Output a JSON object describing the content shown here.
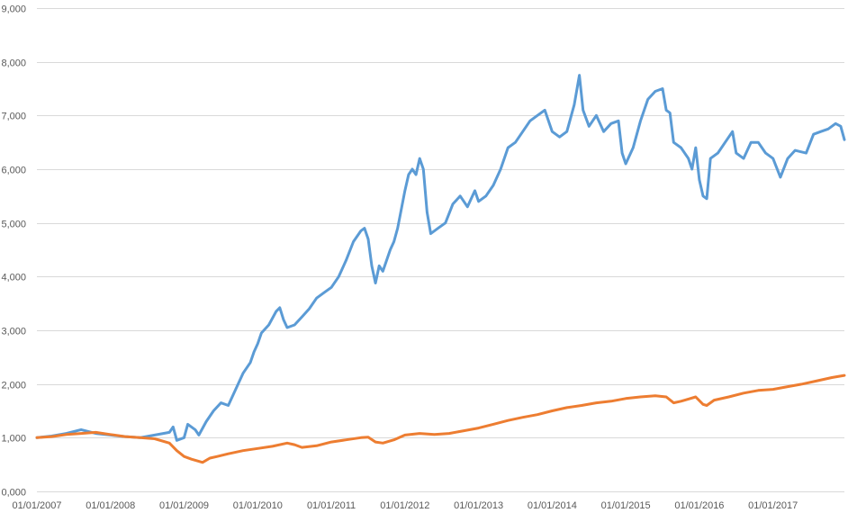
{
  "chart_data": {
    "type": "line",
    "title": "",
    "xlabel": "",
    "ylabel": "",
    "ylim": [
      0,
      9000
    ],
    "y_ticks": [
      "0,000",
      "1,000",
      "2,000",
      "3,000",
      "4,000",
      "5,000",
      "6,000",
      "7,000",
      "8,000",
      "9,000"
    ],
    "y_tick_values": [
      0,
      1000,
      2000,
      3000,
      4000,
      5000,
      6000,
      7000,
      8000,
      9000
    ],
    "x_ticks": [
      "01/01/2007",
      "01/01/2008",
      "01/01/2009",
      "01/01/2010",
      "01/01/2011",
      "01/01/2012",
      "01/01/2013",
      "01/01/2014",
      "01/01/2015",
      "01/01/2016",
      "01/01/2017"
    ],
    "x_tick_values": [
      2007,
      2008,
      2009,
      2010,
      2011,
      2012,
      2013,
      2014,
      2015,
      2016,
      2017
    ],
    "xlim": [
      2007,
      2017.97
    ],
    "grid": true,
    "legend": "none",
    "series": [
      {
        "color": "#5B9BD5",
        "points": [
          [
            2007.0,
            1000
          ],
          [
            2007.2,
            1030
          ],
          [
            2007.4,
            1080
          ],
          [
            2007.6,
            1150
          ],
          [
            2007.8,
            1080
          ],
          [
            2008.0,
            1050
          ],
          [
            2008.2,
            1020
          ],
          [
            2008.4,
            1000
          ],
          [
            2008.6,
            1050
          ],
          [
            2008.8,
            1100
          ],
          [
            2008.85,
            1200
          ],
          [
            2008.9,
            950
          ],
          [
            2009.0,
            1000
          ],
          [
            2009.05,
            1250
          ],
          [
            2009.15,
            1150
          ],
          [
            2009.2,
            1050
          ],
          [
            2009.3,
            1300
          ],
          [
            2009.4,
            1500
          ],
          [
            2009.5,
            1650
          ],
          [
            2009.6,
            1600
          ],
          [
            2009.7,
            1900
          ],
          [
            2009.8,
            2200
          ],
          [
            2009.9,
            2400
          ],
          [
            2009.95,
            2600
          ],
          [
            2010.0,
            2750
          ],
          [
            2010.05,
            2950
          ],
          [
            2010.15,
            3100
          ],
          [
            2010.25,
            3350
          ],
          [
            2010.3,
            3420
          ],
          [
            2010.35,
            3200
          ],
          [
            2010.4,
            3050
          ],
          [
            2010.5,
            3100
          ],
          [
            2010.6,
            3250
          ],
          [
            2010.7,
            3400
          ],
          [
            2010.8,
            3600
          ],
          [
            2010.9,
            3700
          ],
          [
            2011.0,
            3800
          ],
          [
            2011.1,
            4000
          ],
          [
            2011.2,
            4300
          ],
          [
            2011.3,
            4650
          ],
          [
            2011.4,
            4850
          ],
          [
            2011.45,
            4900
          ],
          [
            2011.5,
            4700
          ],
          [
            2011.55,
            4200
          ],
          [
            2011.6,
            3880
          ],
          [
            2011.65,
            4200
          ],
          [
            2011.7,
            4100
          ],
          [
            2011.8,
            4500
          ],
          [
            2011.85,
            4650
          ],
          [
            2011.9,
            4900
          ],
          [
            2012.0,
            5600
          ],
          [
            2012.05,
            5900
          ],
          [
            2012.1,
            6000
          ],
          [
            2012.15,
            5900
          ],
          [
            2012.2,
            6200
          ],
          [
            2012.25,
            6000
          ],
          [
            2012.3,
            5200
          ],
          [
            2012.35,
            4800
          ],
          [
            2012.45,
            4900
          ],
          [
            2012.55,
            5000
          ],
          [
            2012.65,
            5350
          ],
          [
            2012.75,
            5500
          ],
          [
            2012.85,
            5300
          ],
          [
            2012.95,
            5600
          ],
          [
            2013.0,
            5400
          ],
          [
            2013.1,
            5500
          ],
          [
            2013.2,
            5700
          ],
          [
            2013.3,
            6000
          ],
          [
            2013.4,
            6400
          ],
          [
            2013.5,
            6500
          ],
          [
            2013.6,
            6700
          ],
          [
            2013.7,
            6900
          ],
          [
            2013.8,
            7000
          ],
          [
            2013.9,
            7100
          ],
          [
            2014.0,
            6700
          ],
          [
            2014.1,
            6600
          ],
          [
            2014.2,
            6700
          ],
          [
            2014.3,
            7200
          ],
          [
            2014.37,
            7750
          ],
          [
            2014.42,
            7100
          ],
          [
            2014.5,
            6800
          ],
          [
            2014.6,
            7000
          ],
          [
            2014.7,
            6700
          ],
          [
            2014.8,
            6850
          ],
          [
            2014.9,
            6900
          ],
          [
            2014.95,
            6300
          ],
          [
            2015.0,
            6100
          ],
          [
            2015.1,
            6400
          ],
          [
            2015.2,
            6900
          ],
          [
            2015.3,
            7300
          ],
          [
            2015.4,
            7450
          ],
          [
            2015.5,
            7500
          ],
          [
            2015.55,
            7100
          ],
          [
            2015.6,
            7050
          ],
          [
            2015.65,
            6500
          ],
          [
            2015.75,
            6400
          ],
          [
            2015.85,
            6200
          ],
          [
            2015.9,
            6000
          ],
          [
            2015.95,
            6400
          ],
          [
            2016.0,
            5800
          ],
          [
            2016.05,
            5500
          ],
          [
            2016.1,
            5450
          ],
          [
            2016.15,
            6200
          ],
          [
            2016.25,
            6300
          ],
          [
            2016.35,
            6500
          ],
          [
            2016.45,
            6700
          ],
          [
            2016.5,
            6300
          ],
          [
            2016.6,
            6200
          ],
          [
            2016.7,
            6500
          ],
          [
            2016.8,
            6500
          ],
          [
            2016.9,
            6300
          ],
          [
            2017.0,
            6200
          ],
          [
            2017.1,
            5850
          ],
          [
            2017.2,
            6200
          ],
          [
            2017.3,
            6350
          ],
          [
            2017.45,
            6300
          ],
          [
            2017.55,
            6650
          ],
          [
            2017.65,
            6700
          ],
          [
            2017.75,
            6750
          ],
          [
            2017.85,
            6850
          ],
          [
            2017.92,
            6800
          ],
          [
            2017.97,
            6550
          ]
        ]
      },
      {
        "color": "#ED7D31",
        "points": [
          [
            2007.0,
            1000
          ],
          [
            2007.2,
            1020
          ],
          [
            2007.4,
            1060
          ],
          [
            2007.6,
            1080
          ],
          [
            2007.8,
            1100
          ],
          [
            2008.0,
            1060
          ],
          [
            2008.2,
            1020
          ],
          [
            2008.4,
            1000
          ],
          [
            2008.6,
            980
          ],
          [
            2008.8,
            900
          ],
          [
            2008.9,
            760
          ],
          [
            2009.0,
            650
          ],
          [
            2009.1,
            600
          ],
          [
            2009.2,
            560
          ],
          [
            2009.25,
            540
          ],
          [
            2009.35,
            620
          ],
          [
            2009.45,
            650
          ],
          [
            2009.6,
            700
          ],
          [
            2009.8,
            760
          ],
          [
            2010.0,
            800
          ],
          [
            2010.2,
            840
          ],
          [
            2010.4,
            900
          ],
          [
            2010.5,
            870
          ],
          [
            2010.6,
            820
          ],
          [
            2010.8,
            850
          ],
          [
            2011.0,
            920
          ],
          [
            2011.2,
            960
          ],
          [
            2011.4,
            1000
          ],
          [
            2011.5,
            1010
          ],
          [
            2011.6,
            920
          ],
          [
            2011.7,
            900
          ],
          [
            2011.85,
            960
          ],
          [
            2012.0,
            1050
          ],
          [
            2012.2,
            1080
          ],
          [
            2012.4,
            1060
          ],
          [
            2012.6,
            1080
          ],
          [
            2012.8,
            1130
          ],
          [
            2013.0,
            1180
          ],
          [
            2013.2,
            1250
          ],
          [
            2013.4,
            1320
          ],
          [
            2013.6,
            1380
          ],
          [
            2013.8,
            1430
          ],
          [
            2014.0,
            1500
          ],
          [
            2014.2,
            1560
          ],
          [
            2014.4,
            1600
          ],
          [
            2014.6,
            1650
          ],
          [
            2014.8,
            1680
          ],
          [
            2015.0,
            1730
          ],
          [
            2015.2,
            1760
          ],
          [
            2015.4,
            1780
          ],
          [
            2015.55,
            1760
          ],
          [
            2015.65,
            1650
          ],
          [
            2015.75,
            1680
          ],
          [
            2015.85,
            1720
          ],
          [
            2015.95,
            1760
          ],
          [
            2016.05,
            1620
          ],
          [
            2016.1,
            1600
          ],
          [
            2016.2,
            1700
          ],
          [
            2016.4,
            1760
          ],
          [
            2016.6,
            1830
          ],
          [
            2016.8,
            1880
          ],
          [
            2017.0,
            1900
          ],
          [
            2017.2,
            1950
          ],
          [
            2017.4,
            2000
          ],
          [
            2017.6,
            2060
          ],
          [
            2017.8,
            2120
          ],
          [
            2017.97,
            2160
          ]
        ]
      }
    ]
  }
}
